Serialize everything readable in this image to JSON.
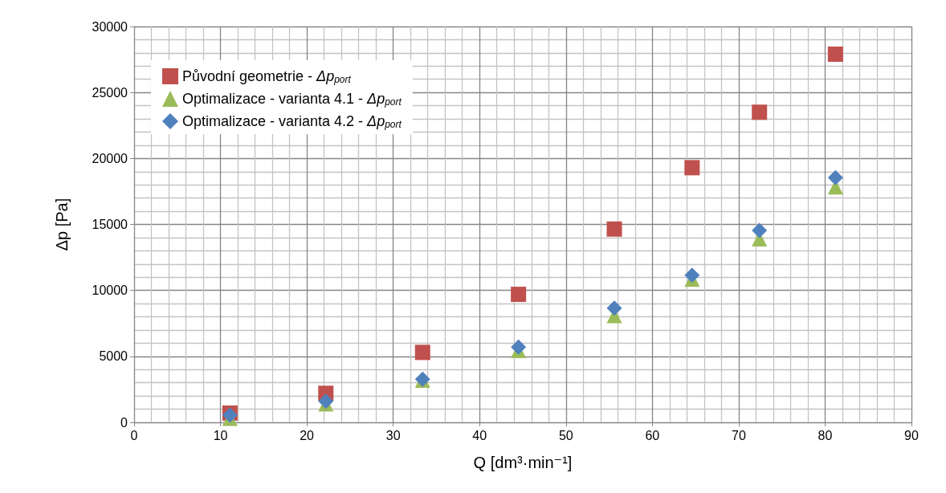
{
  "chart_data": {
    "type": "scatter",
    "xlabel": "Q [dm³·min⁻¹]",
    "ylabel": "Δp [Pa]",
    "xlim": [
      0,
      90
    ],
    "xticks": [
      0,
      10,
      20,
      30,
      40,
      50,
      60,
      70,
      80,
      90
    ],
    "ylim": [
      0,
      30000
    ],
    "yticks": [
      0,
      5000,
      10000,
      15000,
      20000,
      25000,
      30000
    ],
    "grid": true,
    "legend": "top left",
    "x": [
      11.1,
      22.2,
      33.4,
      44.5,
      55.6,
      64.6,
      72.4,
      81.2
    ],
    "series": [
      {
        "name": "Původní geometrie - Δp$_{port}$",
        "color": "#c0504d",
        "marker": "square",
        "values": [
          700,
          2200,
          5300,
          9700,
          14650,
          19300,
          23500,
          27900
        ]
      },
      {
        "name": "Optimalizace - varianta 4.1 - Δp$_{port}$",
        "color": "#9bbb59",
        "marker": "triangle",
        "values": [
          300,
          1400,
          3200,
          5450,
          8100,
          10850,
          13900,
          17850
        ]
      },
      {
        "name": "Optimalizace - varianta 4.2 - Δp$_{port}$",
        "color": "#4f81bd",
        "marker": "diamond",
        "values": [
          550,
          1600,
          3270,
          5700,
          8650,
          11150,
          14550,
          18550
        ]
      }
    ]
  }
}
